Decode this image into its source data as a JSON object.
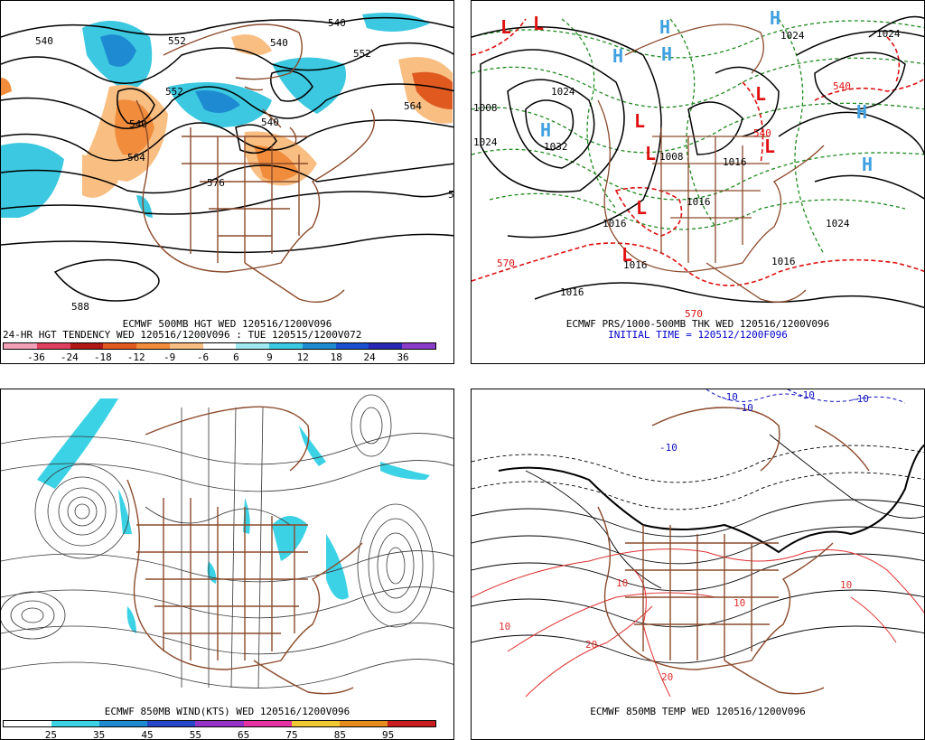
{
  "panels": {
    "tl": {
      "caption1": "ECMWF 500MB HGT WED 120516/1200V096",
      "caption2": "24-HR HGT TENDENCY WED 120516/1200V096 : TUE 120515/1200V072",
      "contour_labels": [
        "540",
        "552",
        "540",
        "540",
        "552",
        "552",
        "540",
        "564",
        "540",
        "576",
        "564",
        "588",
        "5"
      ],
      "legend": {
        "colors": [
          "#f2a0b8",
          "#e04060",
          "#b01818",
          "#e05a20",
          "#f08c3c",
          "#f9be82",
          "#ffffff",
          "#9fe8f0",
          "#3cc8e0",
          "#1e8ad2",
          "#1a4fd0",
          "#2828b4",
          "#8a3cc8"
        ],
        "ticks": [
          "-36",
          "-24",
          "-18",
          "-12",
          "-9",
          "-6",
          "6",
          "9",
          "12",
          "18",
          "24",
          "36"
        ]
      }
    },
    "tr": {
      "caption1": "ECMWF PRS/1000-500MB THK WED 120516/1200V096",
      "caption2": "INITIAL TIME = 120512/1200F096",
      "pressure_labels": [
        "1024",
        "1024",
        "1024",
        "1008",
        "1024",
        "1032",
        "1016",
        "1016",
        "1016",
        "1016",
        "1008",
        "1016",
        "1024",
        "1016"
      ],
      "thickness_labels": [
        "570",
        "540",
        "540",
        "570"
      ],
      "highs": [
        "H",
        "H",
        "H",
        "H",
        "H",
        "H",
        "H"
      ],
      "lows": [
        "L",
        "L",
        "L",
        "L",
        "L",
        "L",
        "L",
        "L"
      ]
    },
    "bl": {
      "caption1": "ECMWF 850MB WIND(KTS) WED 120516/1200V096",
      "legend": {
        "colors": [
          "#ffffff",
          "#3cd2e6",
          "#1e8ad2",
          "#2846c8",
          "#9632c8",
          "#e632a0",
          "#f0c832",
          "#e68c1e",
          "#c81e1e"
        ],
        "ticks": [
          "25",
          "35",
          "45",
          "55",
          "65",
          "75",
          "85",
          "95"
        ]
      }
    },
    "br": {
      "caption1": "ECMWF 850MB TEMP WED 120516/1200V096",
      "temp_labels": [
        "-10",
        "-10",
        "-10",
        "-10",
        "-10",
        "10",
        "10",
        "10",
        "10",
        "20",
        "20"
      ]
    }
  },
  "colors": {
    "coast": "#8b4a2b",
    "contour": "#000000",
    "thickness_cold": "#1f8a1f",
    "thickness_warm": "#e01010",
    "high": "#3ea0e0",
    "low": "#e01010",
    "wind_shade": "#3cd2e6",
    "temp_warm": "#e03030",
    "temp_cold": "#1010c0"
  }
}
